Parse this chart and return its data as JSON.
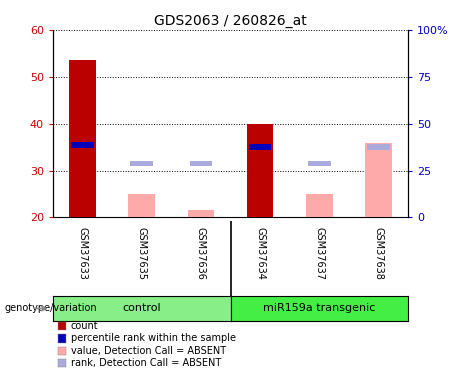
{
  "title": "GDS2063 / 260826_at",
  "samples": [
    "GSM37633",
    "GSM37635",
    "GSM37636",
    "GSM37634",
    "GSM37637",
    "GSM37638"
  ],
  "groups": [
    {
      "name": "control",
      "n": 3,
      "color": "#88EE88"
    },
    {
      "name": "miR159a transgenic",
      "n": 3,
      "color": "#44EE44"
    }
  ],
  "ylim_left": [
    20,
    60
  ],
  "ylim_right": [
    0,
    100
  ],
  "yticks_left": [
    20,
    30,
    40,
    50,
    60
  ],
  "yticks_right": [
    0,
    25,
    50,
    75,
    100
  ],
  "yticklabels_right": [
    "0",
    "25",
    "50",
    "75",
    "100%"
  ],
  "bar_data": {
    "GSM37633": {
      "count": 53.5,
      "rank": 35.5
    },
    "GSM37635": {
      "absent_value": 25.0,
      "absent_rank": 31.5
    },
    "GSM37636": {
      "absent_value": 21.5,
      "absent_rank": 31.5
    },
    "GSM37634": {
      "count": 40.0,
      "rank": 35.0
    },
    "GSM37637": {
      "absent_value": 25.0,
      "absent_rank": 31.5
    },
    "GSM37638": {
      "absent_value": 36.0,
      "absent_rank": 35.0
    }
  },
  "bar_width": 0.45,
  "count_color": "#BB0000",
  "rank_color": "#0000BB",
  "absent_value_color": "#FFAAAA",
  "absent_rank_color": "#AAAADD",
  "legend_items": [
    {
      "label": "count",
      "color": "#BB0000"
    },
    {
      "label": "percentile rank within the sample",
      "color": "#0000BB"
    },
    {
      "label": "value, Detection Call = ABSENT",
      "color": "#FFAAAA"
    },
    {
      "label": "rank, Detection Call = ABSENT",
      "color": "#AAAADD"
    }
  ],
  "xlabel_area": "genotype/variation",
  "background_color": "#ffffff",
  "axis_label_color_left": "#CC0000",
  "axis_label_color_right": "#0000CC",
  "sample_bg_color": "#CCCCCC",
  "title_fontsize": 10,
  "tick_fontsize": 8,
  "label_fontsize": 7,
  "legend_fontsize": 7
}
